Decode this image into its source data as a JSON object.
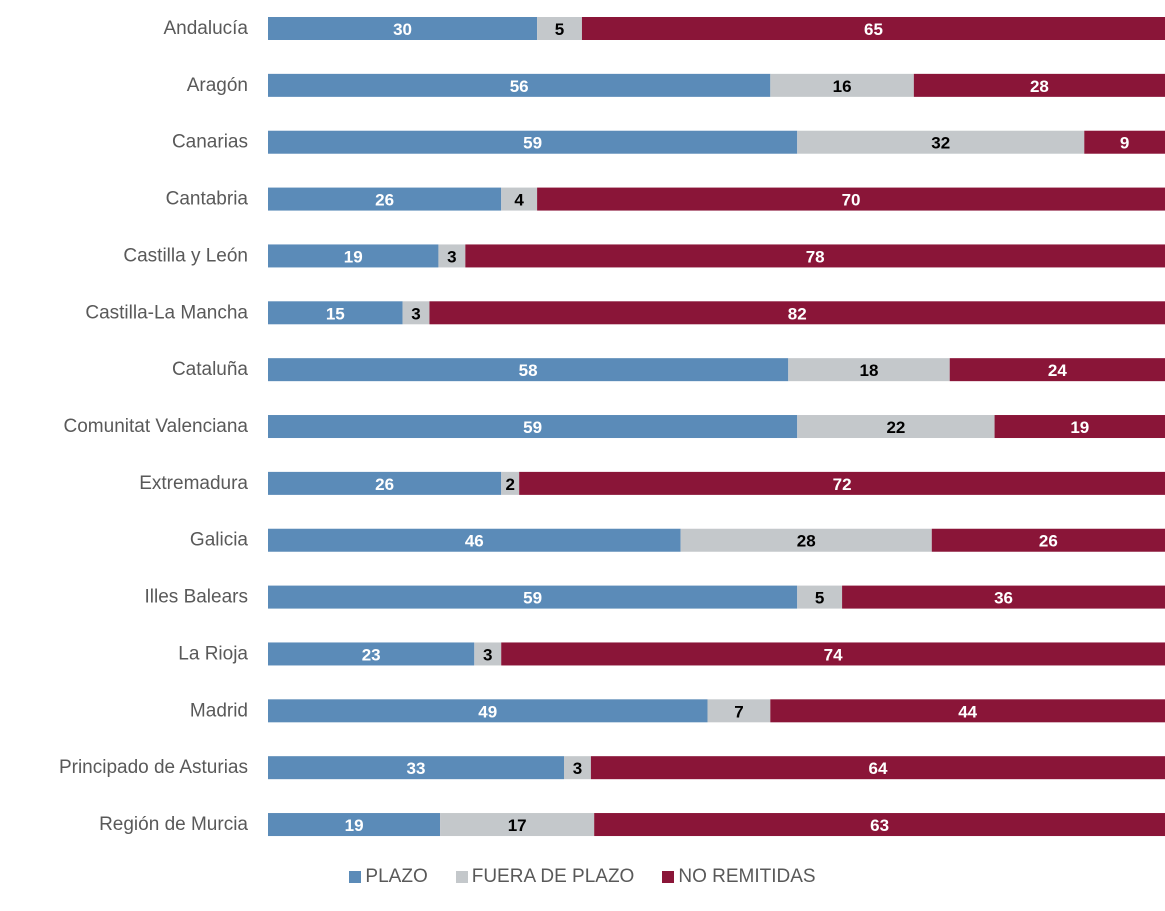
{
  "chart_data": {
    "type": "bar",
    "orientation": "horizontal",
    "stacked": true,
    "categories": [
      "Andalucía",
      "Aragón",
      "Canarias",
      "Cantabria",
      "Castilla y León",
      "Castilla-La Mancha",
      "Cataluña",
      "Comunitat Valenciana",
      "Extremadura",
      "Galicia",
      "Illes Balears",
      "La Rioja",
      "Madrid",
      "Principado de Asturias",
      "Región de Murcia"
    ],
    "series": [
      {
        "name": "PLAZO",
        "color": "#5b8bb8",
        "label_color": "#ffffff",
        "values": [
          30,
          56,
          59,
          26,
          19,
          15,
          58,
          59,
          26,
          46,
          59,
          23,
          49,
          33,
          19
        ]
      },
      {
        "name": "FUERA DE PLAZO",
        "color": "#c4c8cb",
        "label_color": "#000000",
        "values": [
          5,
          16,
          32,
          4,
          3,
          3,
          18,
          22,
          2,
          28,
          5,
          3,
          7,
          3,
          17
        ]
      },
      {
        "name": "NO REMITIDAS",
        "color": "#8a1538",
        "label_color": "#ffffff",
        "values": [
          65,
          28,
          9,
          70,
          78,
          82,
          24,
          19,
          72,
          26,
          36,
          74,
          44,
          64,
          63
        ]
      }
    ],
    "legend_position": "bottom",
    "grid": false
  }
}
